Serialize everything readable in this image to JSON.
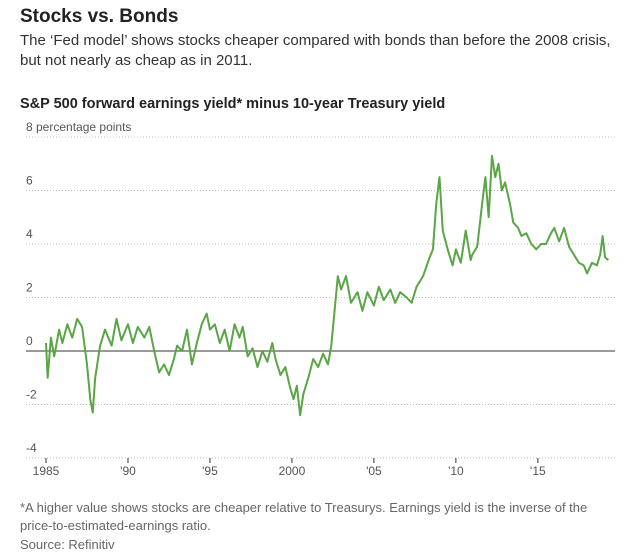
{
  "chart_data": {
    "type": "line",
    "title": "Stocks vs. Bonds",
    "subtitle": "The ‘Fed model’ shows stocks cheaper compared with bonds than before the 2008 crisis, but not nearly as cheap as in 2011.",
    "chart_title": "S&P 500 forward earnings yield* minus 10-year Treasury yield",
    "footnote": "*A higher value shows stocks are cheaper relative to Treasurys. Earnings yield is the inverse of the price-to-estimated-earnings ratio.",
    "source": "Source: Refinitiv",
    "color": "#5aa545",
    "grid": true,
    "xlim": [
      1985,
      2019.4
    ],
    "ylim": [
      -4,
      8
    ],
    "yticks": [
      -4,
      -2,
      0,
      2,
      4,
      6,
      {
        "value": 8,
        "label": "8 percentage points"
      }
    ],
    "xticks": [
      1985,
      {
        "value": 1990,
        "label": "'90"
      },
      {
        "value": 1995,
        "label": "'95"
      },
      2000,
      {
        "value": 2005,
        "label": "'05"
      },
      {
        "value": 2010,
        "label": "'10"
      },
      {
        "value": 2015,
        "label": "'15"
      }
    ],
    "x": [
      1985.0,
      1985.1,
      1985.3,
      1985.5,
      1985.8,
      1986.0,
      1986.3,
      1986.6,
      1986.9,
      1987.2,
      1987.5,
      1987.7,
      1987.85,
      1988.0,
      1988.3,
      1988.6,
      1989.0,
      1989.3,
      1989.6,
      1990.0,
      1990.3,
      1990.6,
      1991.0,
      1991.3,
      1991.6,
      1991.9,
      1992.2,
      1992.5,
      1992.8,
      1993.0,
      1993.3,
      1993.6,
      1993.9,
      1994.2,
      1994.5,
      1994.8,
      1995.0,
      1995.3,
      1995.6,
      1995.9,
      1996.2,
      1996.5,
      1996.8,
      1997.0,
      1997.3,
      1997.6,
      1997.9,
      1998.2,
      1998.5,
      1998.8,
      1999.0,
      1999.3,
      1999.6,
      1999.9,
      2000.1,
      2000.3,
      2000.5,
      2000.7,
      2001.0,
      2001.3,
      2001.6,
      2001.9,
      2002.2,
      2002.4,
      2002.6,
      2002.8,
      2003.0,
      2003.3,
      2003.6,
      2004.0,
      2004.3,
      2004.6,
      2005.0,
      2005.3,
      2005.6,
      2006.0,
      2006.3,
      2006.6,
      2007.0,
      2007.3,
      2007.6,
      2008.0,
      2008.4,
      2008.6,
      2008.8,
      2009.0,
      2009.2,
      2009.5,
      2009.8,
      2010.0,
      2010.3,
      2010.6,
      2010.9,
      2011.0,
      2011.3,
      2011.6,
      2011.8,
      2012.0,
      2012.2,
      2012.4,
      2012.6,
      2012.8,
      2013.0,
      2013.3,
      2013.5,
      2013.8,
      2014.0,
      2014.3,
      2014.6,
      2014.9,
      2015.2,
      2015.5,
      2015.8,
      2016.0,
      2016.3,
      2016.6,
      2016.9,
      2017.2,
      2017.5,
      2017.8,
      2018.0,
      2018.3,
      2018.6,
      2018.8,
      2018.95,
      2019.1,
      2019.3
    ],
    "values": [
      0.3,
      -1.0,
      0.5,
      -0.2,
      0.8,
      0.3,
      1.0,
      0.5,
      1.2,
      0.9,
      -0.5,
      -1.8,
      -2.3,
      -1.0,
      0.2,
      0.8,
      0.2,
      1.2,
      0.4,
      1.0,
      0.3,
      0.9,
      0.5,
      0.9,
      0.0,
      -0.8,
      -0.5,
      -0.9,
      -0.3,
      0.2,
      0.0,
      0.8,
      -0.5,
      0.3,
      1.0,
      1.4,
      0.8,
      1.0,
      0.3,
      0.8,
      0.0,
      1.0,
      0.5,
      0.9,
      -0.2,
      0.1,
      -0.6,
      0.0,
      -0.4,
      0.3,
      -0.3,
      -0.9,
      -0.6,
      -1.4,
      -1.8,
      -1.3,
      -2.4,
      -1.6,
      -1.0,
      -0.3,
      -0.6,
      -0.1,
      -0.5,
      0.2,
      1.5,
      2.8,
      2.3,
      2.8,
      1.8,
      2.2,
      1.5,
      2.2,
      1.7,
      2.4,
      1.9,
      2.3,
      1.8,
      2.2,
      2.0,
      1.8,
      2.4,
      2.8,
      3.5,
      3.8,
      5.5,
      6.5,
      4.5,
      3.8,
      3.2,
      3.8,
      3.3,
      4.5,
      3.4,
      3.6,
      3.9,
      5.5,
      6.5,
      5.0,
      7.3,
      6.5,
      7.0,
      6.0,
      6.3,
      5.5,
      4.8,
      4.6,
      4.3,
      4.4,
      4.0,
      3.8,
      4.0,
      4.0,
      4.4,
      4.6,
      4.1,
      4.6,
      3.9,
      3.6,
      3.3,
      3.2,
      2.9,
      3.3,
      3.2,
      3.6,
      4.3,
      3.5,
      3.4
    ]
  }
}
